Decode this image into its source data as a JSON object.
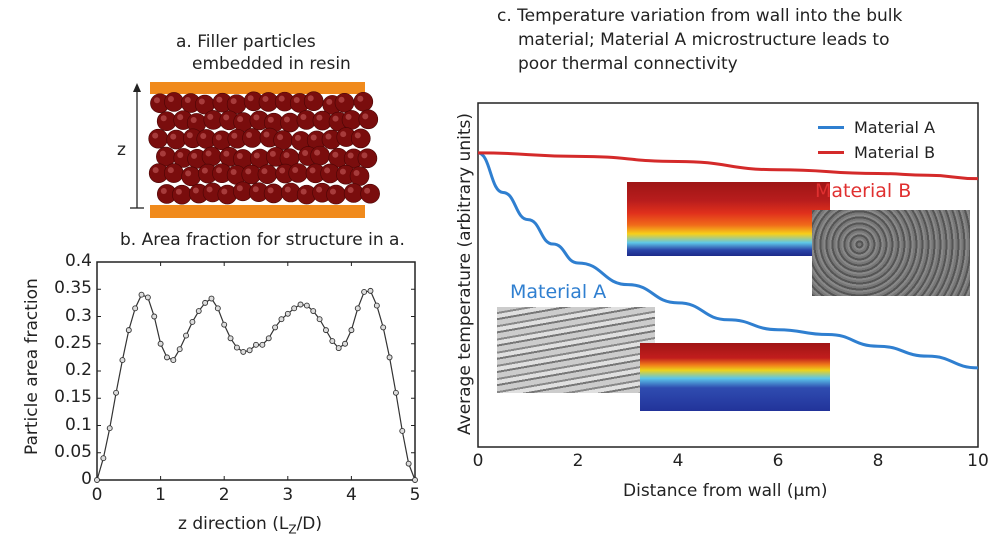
{
  "panel_a": {
    "title_line1": "a. Filler particles",
    "title_line2": "embedded in resin",
    "axis_label": "z",
    "colors": {
      "resin": "#f08a1c",
      "particle": "#7a0d0d"
    }
  },
  "chart_data": [
    {
      "type": "line",
      "title": "b. Area fraction for structure in a.",
      "xlabel": "z direction (LZ/D)",
      "xlabel_main": "z direction (L",
      "xlabel_sub": "Z",
      "xlabel_end": "/D)",
      "ylabel": "Particle area fraction",
      "xlim": [
        0,
        5
      ],
      "ylim": [
        0,
        0.4
      ],
      "xticks": [
        "0",
        "1",
        "2",
        "3",
        "4",
        "5"
      ],
      "yticks": [
        "0",
        "0.05",
        "0.1",
        "0.15",
        "0.2",
        "0.25",
        "0.3",
        "0.35",
        "0.4"
      ],
      "grid": false,
      "markers": "circle",
      "x": [
        0,
        0.1,
        0.2,
        0.3,
        0.4,
        0.5,
        0.6,
        0.7,
        0.8,
        0.9,
        1.0,
        1.1,
        1.2,
        1.3,
        1.4,
        1.5,
        1.6,
        1.7,
        1.8,
        1.9,
        2.0,
        2.1,
        2.2,
        2.3,
        2.4,
        2.5,
        2.6,
        2.7,
        2.8,
        2.9,
        3.0,
        3.1,
        3.2,
        3.3,
        3.4,
        3.5,
        3.6,
        3.7,
        3.8,
        3.9,
        4.0,
        4.1,
        4.2,
        4.3,
        4.4,
        4.5,
        4.6,
        4.7,
        4.8,
        4.9,
        5.0
      ],
      "y": [
        0,
        0.04,
        0.095,
        0.16,
        0.22,
        0.275,
        0.315,
        0.34,
        0.335,
        0.3,
        0.25,
        0.225,
        0.22,
        0.24,
        0.265,
        0.29,
        0.31,
        0.325,
        0.333,
        0.315,
        0.285,
        0.26,
        0.243,
        0.235,
        0.238,
        0.248,
        0.248,
        0.26,
        0.28,
        0.295,
        0.305,
        0.315,
        0.322,
        0.32,
        0.31,
        0.295,
        0.275,
        0.255,
        0.242,
        0.25,
        0.275,
        0.315,
        0.345,
        0.347,
        0.32,
        0.28,
        0.225,
        0.16,
        0.09,
        0.03,
        0
      ]
    },
    {
      "type": "line",
      "title_lines": [
        "c. Temperature variation from wall into the bulk",
        "material; Material A microstructure leads to",
        "poor thermal connectivity"
      ],
      "xlabel": "Distance from wall (µm)",
      "ylabel": "Average temperature (arbitrary units)",
      "xlim": [
        0,
        10
      ],
      "ylim": [
        0,
        1
      ],
      "xticks": [
        "0",
        "2",
        "4",
        "6",
        "8",
        "10"
      ],
      "grid": false,
      "legend_position": "top-right",
      "series": [
        {
          "name": "Material A",
          "color": "#2f7fd0",
          "x": [
            0,
            0.5,
            1,
            1.5,
            2,
            3,
            4,
            5,
            6,
            7,
            8,
            9,
            10
          ],
          "y": [
            0.855,
            0.74,
            0.661,
            0.59,
            0.535,
            0.472,
            0.419,
            0.37,
            0.341,
            0.327,
            0.293,
            0.264,
            0.23
          ]
        },
        {
          "name": "Material B",
          "color": "#d42a2a",
          "x": [
            0,
            2,
            4,
            6,
            8,
            9,
            10
          ],
          "y": [
            0.855,
            0.845,
            0.83,
            0.806,
            0.795,
            0.79,
            0.78
          ]
        }
      ],
      "annotations": [
        {
          "text": "Material A",
          "color": "#2f7fd0"
        },
        {
          "text": "Material B",
          "color": "#e03030"
        }
      ]
    }
  ]
}
